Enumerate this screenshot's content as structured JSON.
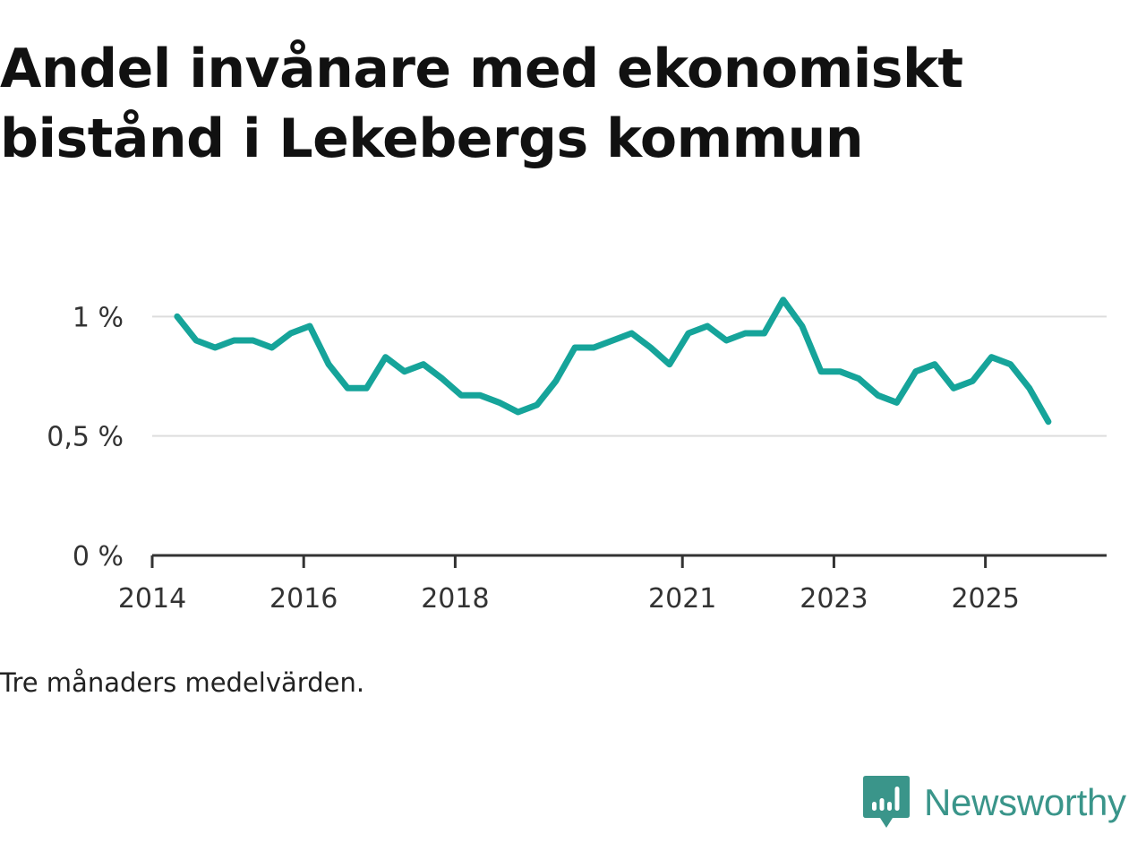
{
  "title": "Andel invånare med ekonomiskt bistånd i Lekebergs kommun",
  "note": "Tre månaders medelvärden.",
  "brand": {
    "name": "Newsworthy",
    "icon": "newsworthy-logo-icon",
    "color": "#3a958a"
  },
  "colors": {
    "line": "#16a49a",
    "grid": "#dddddd",
    "axis": "#333333"
  },
  "chart_data": {
    "type": "line",
    "title": "Andel invånare med ekonomiskt bistånd i Lekebergs kommun",
    "xlabel": "",
    "ylabel": "",
    "grid": true,
    "ylim": [
      0,
      1.2
    ],
    "xlim": [
      2014.0,
      2026.6
    ],
    "y_ticks": [
      {
        "value": 0,
        "label": "0 %"
      },
      {
        "value": 0.5,
        "label": "0,5 %"
      },
      {
        "value": 1,
        "label": "1 %"
      }
    ],
    "x_ticks": [
      {
        "value": 2014.0,
        "label": "2014"
      },
      {
        "value": 2016.0,
        "label": "2016"
      },
      {
        "value": 2018.0,
        "label": "2018"
      },
      {
        "value": 2021.0,
        "label": "2021"
      },
      {
        "value": 2023.0,
        "label": "2023"
      },
      {
        "value": 2025.0,
        "label": "2025"
      }
    ],
    "series": [
      {
        "name": "Andel invånare med ekonomiskt bistånd",
        "x": [
          2014.33,
          2014.58,
          2014.83,
          2015.08,
          2015.33,
          2015.58,
          2015.83,
          2016.08,
          2016.33,
          2016.58,
          2016.83,
          2017.08,
          2017.33,
          2017.58,
          2017.83,
          2018.08,
          2018.33,
          2018.58,
          2018.83,
          2019.08,
          2019.33,
          2019.58,
          2019.83,
          2020.08,
          2020.33,
          2020.58,
          2020.83,
          2021.08,
          2021.33,
          2021.58,
          2021.83,
          2022.08,
          2022.33,
          2022.58,
          2022.83,
          2023.08,
          2023.33,
          2023.58,
          2023.83,
          2024.08,
          2024.33,
          2024.58,
          2024.83,
          2025.08,
          2025.33,
          2025.58,
          2025.83
        ],
        "values": [
          1.0,
          0.9,
          0.87,
          0.9,
          0.9,
          0.87,
          0.93,
          0.96,
          0.8,
          0.7,
          0.7,
          0.83,
          0.77,
          0.8,
          0.74,
          0.67,
          0.67,
          0.64,
          0.6,
          0.63,
          0.73,
          0.87,
          0.87,
          0.9,
          0.93,
          0.87,
          0.8,
          0.93,
          0.96,
          0.9,
          0.93,
          0.93,
          1.07,
          0.96,
          0.77,
          0.77,
          0.74,
          0.67,
          0.64,
          0.77,
          0.8,
          0.7,
          0.73,
          0.83,
          0.8,
          0.7,
          0.56
        ]
      }
    ]
  }
}
